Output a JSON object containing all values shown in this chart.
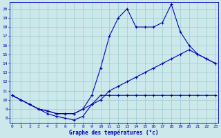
{
  "title": "Graphe des températures (°c)",
  "bg_color": "#cce8ea",
  "grid_color": "#99cccc",
  "line_color": "#0000bb",
  "x_ticks": [
    0,
    1,
    2,
    3,
    4,
    5,
    6,
    7,
    8,
    9,
    10,
    11,
    12,
    13,
    14,
    15,
    16,
    17,
    18,
    19,
    20,
    21,
    22,
    23
  ],
  "y_ticks": [
    8,
    9,
    10,
    11,
    12,
    13,
    14,
    15,
    16,
    17,
    18,
    19,
    20
  ],
  "xlim": [
    -0.3,
    23.3
  ],
  "ylim": [
    7.5,
    20.7
  ],
  "series": [
    {
      "x": [
        0,
        1,
        2,
        3,
        4,
        5,
        6,
        7,
        8,
        9,
        10,
        11,
        12,
        13,
        14,
        15,
        16,
        17,
        18,
        19,
        20,
        21,
        22,
        23
      ],
      "y": [
        10.5,
        10.0,
        9.5,
        9.0,
        8.5,
        8.2,
        8.0,
        7.8,
        8.2,
        9.5,
        10.5,
        10.5,
        10.5,
        10.5,
        10.5,
        10.5,
        10.5,
        10.5,
        10.5,
        10.5,
        10.5,
        10.5,
        10.5,
        10.5
      ]
    },
    {
      "x": [
        0,
        1,
        2,
        3,
        4,
        5,
        6,
        7,
        8,
        9,
        10,
        11,
        12,
        13,
        14,
        15,
        16,
        17,
        18,
        19,
        20,
        21,
        22,
        23
      ],
      "y": [
        10.5,
        10.0,
        9.5,
        9.0,
        8.8,
        8.5,
        8.5,
        8.5,
        9.0,
        9.5,
        10.0,
        11.0,
        11.5,
        12.0,
        12.5,
        13.0,
        13.5,
        14.0,
        14.5,
        15.0,
        15.5,
        15.0,
        14.5,
        14.0
      ]
    },
    {
      "x": [
        0,
        1,
        2,
        3,
        4,
        5,
        6,
        7,
        8,
        9,
        10,
        11,
        12,
        13,
        14,
        15,
        16,
        17,
        18,
        19,
        20,
        21,
        22,
        23
      ],
      "y": [
        10.5,
        10.0,
        9.5,
        9.0,
        8.8,
        8.5,
        8.5,
        8.5,
        9.0,
        10.5,
        13.5,
        17.0,
        19.0,
        20.0,
        18.0,
        18.0,
        18.0,
        18.5,
        20.5,
        17.5,
        16.0,
        15.0,
        14.5,
        14.0
      ]
    }
  ]
}
